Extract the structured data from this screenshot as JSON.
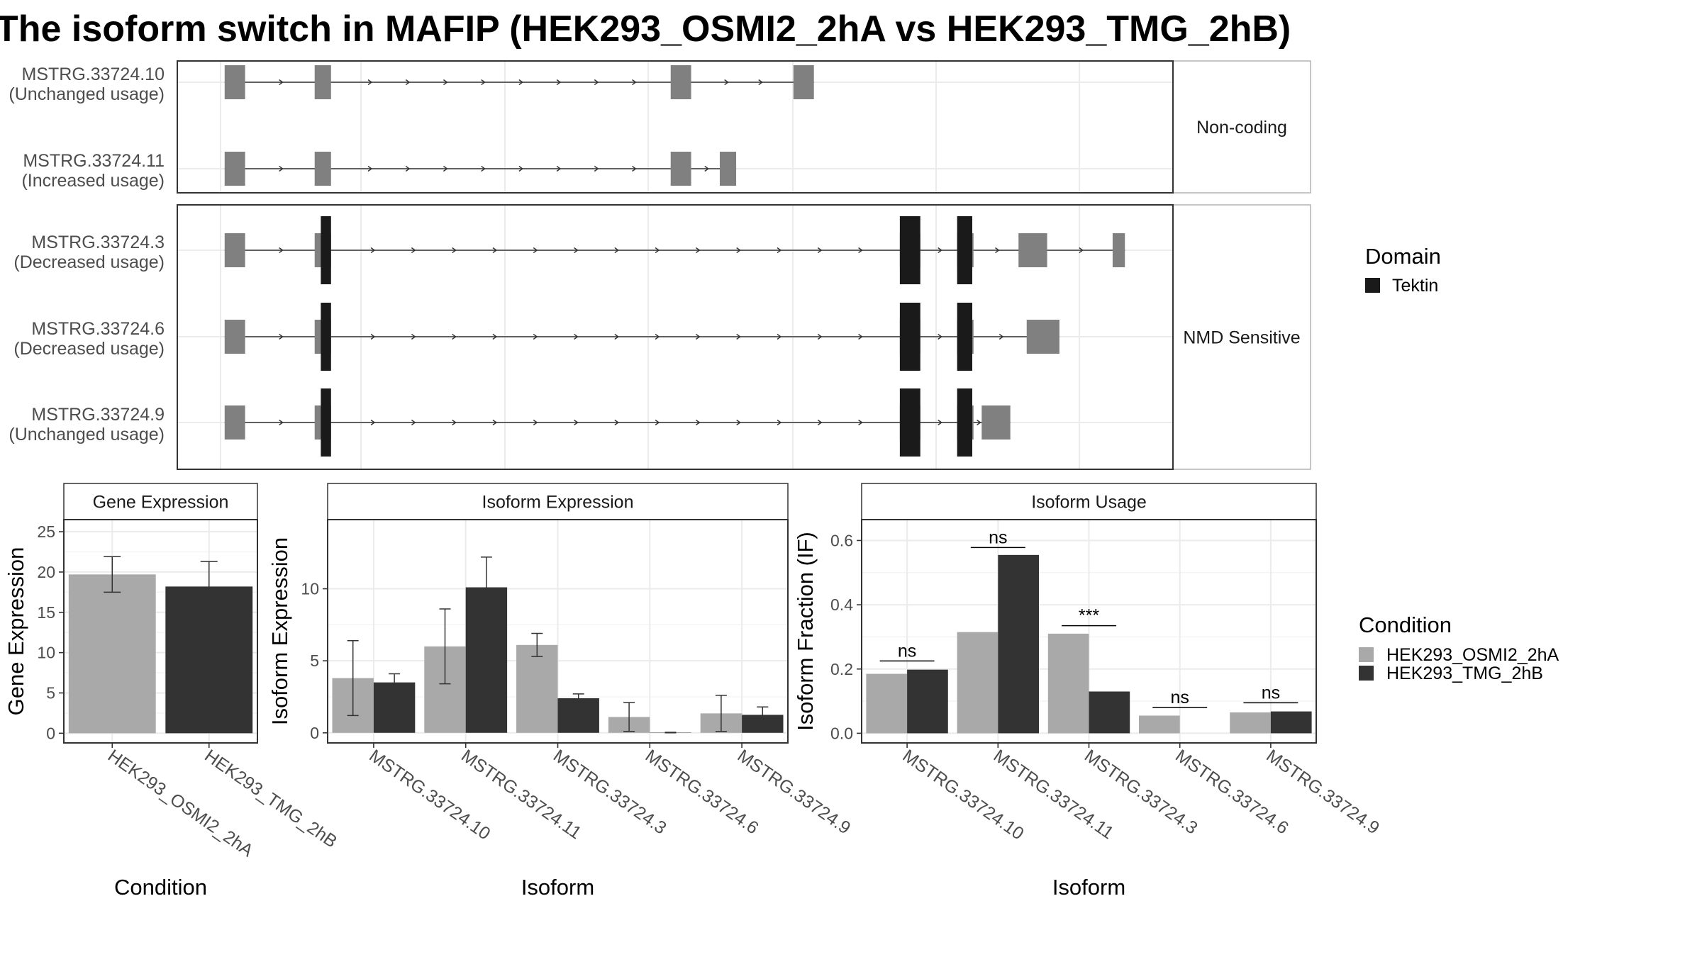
{
  "title": "The isoform switch in MAFIP (HEK293_OSMI2_2hA vs HEK293_TMG_2hB)",
  "colors": {
    "exon_gray": "#808080",
    "domain_black": "#1a1a1a",
    "cond_a": "#a9a9a9",
    "cond_b": "#333333",
    "grid": "#ebebeb",
    "strip": "#ffffff",
    "border": "#333333"
  },
  "structure": {
    "groups": [
      {
        "label": "Non-coding",
        "transcripts": [
          {
            "name": "MSTRG.33724.10",
            "usage": "(Unchanged usage)",
            "exons": [
              [
                1,
                6
              ],
              [
                23,
                27
              ],
              [
                110,
                115
              ],
              [
                140,
                145
              ]
            ],
            "domains": []
          },
          {
            "name": "MSTRG.33724.11",
            "usage": "(Increased usage)",
            "exons": [
              [
                1,
                6
              ],
              [
                23,
                27
              ],
              [
                110,
                115
              ],
              [
                122,
                126
              ]
            ],
            "domains": []
          }
        ]
      },
      {
        "label": "NMD Sensitive",
        "transcripts": [
          {
            "name": "MSTRG.33724.3",
            "usage": "(Decreased usage)",
            "exons": [
              [
                1,
                6
              ],
              [
                23,
                27
              ],
              [
                166,
                171
              ],
              [
                180,
                184
              ],
              [
                195,
                202
              ],
              [
                218,
                221
              ]
            ],
            "domains": [
              [
                24.5,
                27
              ],
              [
                166,
                171
              ],
              [
                180,
                183.7
              ]
            ]
          },
          {
            "name": "MSTRG.33724.6",
            "usage": "(Decreased usage)",
            "exons": [
              [
                1,
                6
              ],
              [
                23,
                27
              ],
              [
                166,
                171
              ],
              [
                180,
                184
              ],
              [
                197,
                205
              ]
            ],
            "domains": [
              [
                24.5,
                27
              ],
              [
                166,
                171
              ],
              [
                180,
                183.7
              ]
            ]
          },
          {
            "name": "MSTRG.33724.9",
            "usage": "(Unchanged usage)",
            "exons": [
              [
                1,
                6
              ],
              [
                23,
                27
              ],
              [
                166,
                171
              ],
              [
                180,
                184
              ],
              [
                186,
                193
              ]
            ],
            "domains": [
              [
                24.5,
                27
              ],
              [
                166,
                171
              ],
              [
                180,
                183.7
              ]
            ]
          }
        ]
      }
    ],
    "x_range": [
      0,
      222
    ]
  },
  "legend_domain": {
    "title": "Domain",
    "items": [
      {
        "label": "Tektin"
      }
    ]
  },
  "legend_condition": {
    "title": "Condition",
    "items": [
      {
        "label": "HEK293_OSMI2_2hA"
      },
      {
        "label": "HEK293_TMG_2hB"
      }
    ]
  },
  "chart_data": [
    {
      "type": "bar",
      "title": "Gene Expression",
      "xlabel": "Condition",
      "ylabel": "Gene Expression",
      "categories": [
        "HEK293_OSMI2_2hA",
        "HEK293_TMG_2hB"
      ],
      "values": [
        19.7,
        18.2
      ],
      "errors": [
        [
          17.5,
          21.9
        ],
        [
          15.1,
          21.3
        ]
      ],
      "ylim": [
        -1.2,
        26.5
      ],
      "yticks": [
        0,
        5,
        10,
        15,
        20,
        25
      ]
    },
    {
      "type": "bar",
      "title": "Isoform Expression",
      "xlabel": "Isoform",
      "ylabel": "Isoform Expression",
      "categories": [
        "MSTRG.33724.10",
        "MSTRG.33724.11",
        "MSTRG.33724.3",
        "MSTRG.33724.6",
        "MSTRG.33724.9"
      ],
      "series": [
        {
          "name": "HEK293_OSMI2_2hA",
          "values": [
            3.8,
            6.0,
            6.1,
            1.1,
            1.35
          ],
          "errors": [
            [
              1.2,
              6.4
            ],
            [
              3.4,
              8.6
            ],
            [
              5.3,
              6.9
            ],
            [
              0.1,
              2.1
            ],
            [
              0.1,
              2.6
            ]
          ]
        },
        {
          "name": "HEK293_TMG_2hB",
          "values": [
            3.5,
            10.1,
            2.4,
            0.02,
            1.25
          ],
          "errors": [
            [
              2.9,
              4.1
            ],
            [
              8.0,
              12.2
            ],
            [
              2.1,
              2.7
            ],
            [
              0.0,
              0.04
            ],
            [
              0.7,
              1.8
            ]
          ]
        }
      ],
      "ylim": [
        -0.7,
        14.8
      ],
      "yticks": [
        0,
        5,
        10
      ]
    },
    {
      "type": "bar",
      "title": "Isoform Usage",
      "xlabel": "Isoform",
      "ylabel": "Isoform Fraction (IF)",
      "categories": [
        "MSTRG.33724.10",
        "MSTRG.33724.11",
        "MSTRG.33724.3",
        "MSTRG.33724.6",
        "MSTRG.33724.9"
      ],
      "series": [
        {
          "name": "HEK293_OSMI2_2hA",
          "values": [
            0.185,
            0.315,
            0.31,
            0.055,
            0.065
          ]
        },
        {
          "name": "HEK293_TMG_2hB",
          "values": [
            0.198,
            0.555,
            0.13,
            0.0,
            0.068
          ]
        }
      ],
      "significance": [
        {
          "label": "ns",
          "y": 0.225
        },
        {
          "label": "ns",
          "y": 0.578
        },
        {
          "label": "***",
          "y": 0.335
        },
        {
          "label": "ns",
          "y": 0.08
        },
        {
          "label": "ns",
          "y": 0.095
        }
      ],
      "ylim": [
        -0.03,
        0.665
      ],
      "yticks": [
        0.0,
        0.2,
        0.4,
        0.6
      ],
      "ytick_labels": [
        "0.0",
        "0.2",
        "0.4",
        "0.6"
      ]
    }
  ]
}
